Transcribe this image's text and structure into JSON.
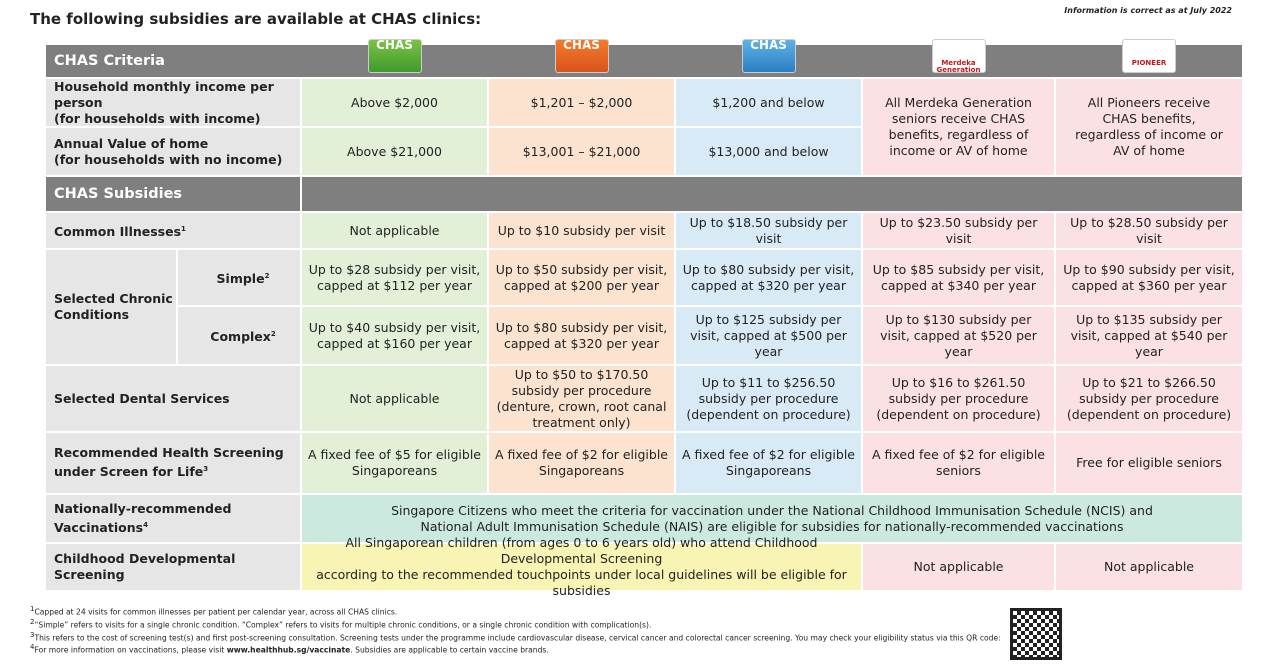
{
  "header": {
    "title": "The following subsidies are available at CHAS clinics:",
    "note": "Information is correct as at July 2022"
  },
  "criteria": {
    "heading": "CHAS Criteria",
    "logos": [
      "CHAS",
      "CHAS",
      "CHAS",
      "Merdeka Generation",
      "PIONEER"
    ],
    "rows": [
      {
        "label": "Household monthly income per person",
        "sub": "(for households with income)",
        "values": [
          "Above $2,000",
          "$1,201 – $2,000",
          "$1,200 and below"
        ]
      },
      {
        "label": "Annual Value of home",
        "sub": "(for households with no income)",
        "values": [
          "Above $21,000",
          "$13,001 – $21,000",
          "$13,000 and below"
        ]
      }
    ],
    "merged": [
      "All Merdeka Generation seniors receive CHAS benefits, regardless of income or AV of home",
      "All Pioneers receive CHAS benefits, regardless of income or AV of home"
    ]
  },
  "subsidies": {
    "heading": "CHAS Subsidies",
    "common": {
      "label": "Common Illnesses",
      "note": "1",
      "values": [
        "Not applicable",
        "Up to $10 subsidy per visit",
        "Up to $18.50 subsidy per visit",
        "Up to $23.50 subsidy per visit",
        "Up to $28.50 subsidy per visit"
      ]
    },
    "chronic": {
      "label": "Selected Chronic Conditions",
      "rows": [
        {
          "label": "Simple",
          "note": "2",
          "values": [
            "Up to $28 subsidy per visit, capped at $112 per year",
            "Up to $50 subsidy per visit, capped at $200 per year",
            "Up to $80 subsidy per visit, capped at $320 per year",
            "Up to $85 subsidy per visit, capped at $340 per year",
            "Up to $90 subsidy per visit, capped at $360 per year"
          ]
        },
        {
          "label": "Complex",
          "note": "2",
          "values": [
            "Up to $40 subsidy per visit, capped at $160 per year",
            "Up to $80 subsidy per visit, capped at $320 per year",
            "Up to $125 subsidy per visit, capped at $500 per year",
            "Up to $130 subsidy per visit, capped at $520 per year",
            "Up to $135 subsidy per visit, capped at $540 per year"
          ]
        }
      ]
    },
    "dental": {
      "label": "Selected Dental Services",
      "values": [
        "Not applicable",
        "Up to $50 to $170.50 subsidy per procedure (denture, crown, root canal treatment only)",
        "Up to $11 to $256.50 subsidy per procedure (dependent on procedure)",
        "Up to $16 to $261.50 subsidy per procedure (dependent on procedure)",
        "Up to $21 to $266.50 subsidy per procedure (dependent on procedure)"
      ]
    },
    "screening": {
      "label": "Recommended Health Screening under Screen for Life",
      "note": "3",
      "values": [
        "A fixed fee of $5 for eligible Singaporeans",
        "A fixed fee of $2 for eligible Singaporeans",
        "A fixed fee of $2 for eligible Singaporeans",
        "A fixed fee of $2 for eligible seniors",
        "Free for eligible seniors"
      ]
    },
    "vaccinations": {
      "label": "Nationally-recommended Vaccinations",
      "note": "4",
      "lines": [
        "Singapore Citizens who meet the criteria for vaccination under the National Childhood Immunisation Schedule (NCIS) and",
        "National Adult Immunisation Schedule (NAIS) are eligible for subsidies for nationally-recommended vaccinations"
      ]
    },
    "childhood": {
      "label": "Childhood Developmental Screening",
      "lines": [
        "All Singaporean children (from ages 0 to 6 years old) who attend Childhood Developmental Screening",
        "according to the recommended touchpoints under local guidelines will be eligible for subsidies"
      ],
      "values": [
        "Not applicable",
        "Not applicable"
      ]
    }
  },
  "footnotes": [
    {
      "num": "1",
      "text": "Capped at 24 visits for common illnesses per patient per calendar year, across all CHAS clinics."
    },
    {
      "num": "2",
      "text": "“Simple” refers to visits for a single chronic condition. “Complex” refers to visits for multiple chronic conditions, or a single chronic condition with complication(s)."
    },
    {
      "num": "3",
      "text": "This refers to the cost of screening test(s) and first post-screening consultation. Screening tests under the programme include cardiovascular disease, cervical cancer and colorectal cancer screening. You may check your eligibility status via this QR code:"
    },
    {
      "num": "4",
      "text": "For more information on vaccinations, please visit ",
      "link": "www.healthhub.sg/vaccinate",
      "after": ". Subsidies are applicable to certain vaccine brands."
    }
  ]
}
